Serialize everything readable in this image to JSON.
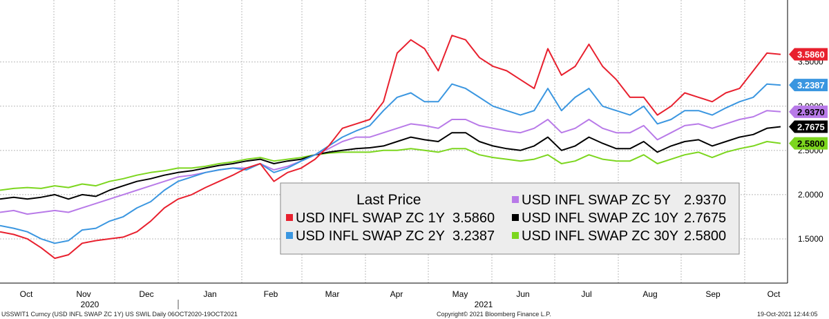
{
  "chart_data": {
    "type": "line",
    "ylim": [
      1.0,
      4.2
    ],
    "yticks": [
      "1.5000",
      "2.0000",
      "2.5000",
      "3.0000",
      "3.5000"
    ],
    "grid": true,
    "legend_placement": "bottom-center",
    "months": [
      "Oct",
      "Nov",
      "Dec",
      "Jan",
      "Feb",
      "Mar",
      "Apr",
      "May",
      "Jun",
      "Jul",
      "Aug",
      "Sep",
      "Oct"
    ],
    "years": [
      "2020",
      "2021"
    ],
    "legend_title": "Last Price",
    "series": [
      {
        "name": "USD INFL SWAP ZC 1Y",
        "last": "3.5860",
        "color": "#e8202e",
        "values": [
          1.58,
          1.55,
          1.5,
          1.4,
          1.28,
          1.32,
          1.45,
          1.48,
          1.5,
          1.52,
          1.58,
          1.7,
          1.85,
          1.95,
          2.0,
          2.08,
          2.15,
          2.22,
          2.3,
          2.35,
          2.15,
          2.25,
          2.3,
          2.4,
          2.55,
          2.75,
          2.8,
          2.85,
          3.05,
          3.6,
          3.75,
          3.65,
          3.4,
          3.8,
          3.75,
          3.55,
          3.45,
          3.4,
          3.3,
          3.2,
          3.65,
          3.35,
          3.45,
          3.7,
          3.45,
          3.3,
          3.1,
          3.1,
          2.9,
          3.0,
          3.15,
          3.1,
          3.05,
          3.15,
          3.2,
          3.4,
          3.6,
          3.586
        ]
      },
      {
        "name": "USD INFL SWAP ZC 2Y",
        "last": "3.2387",
        "color": "#3a96e0",
        "values": [
          1.65,
          1.62,
          1.58,
          1.5,
          1.45,
          1.48,
          1.6,
          1.62,
          1.7,
          1.75,
          1.85,
          1.92,
          2.05,
          2.15,
          2.2,
          2.25,
          2.28,
          2.3,
          2.28,
          2.35,
          2.25,
          2.3,
          2.38,
          2.45,
          2.55,
          2.65,
          2.72,
          2.78,
          2.95,
          3.1,
          3.15,
          3.05,
          3.05,
          3.25,
          3.2,
          3.1,
          3.0,
          2.95,
          2.9,
          2.95,
          3.2,
          2.95,
          3.1,
          3.2,
          3.0,
          2.95,
          2.9,
          3.0,
          2.8,
          2.85,
          2.95,
          2.95,
          2.9,
          2.98,
          3.05,
          3.1,
          3.25,
          3.2387
        ]
      },
      {
        "name": "USD INFL SWAP ZC 5Y",
        "last": "2.9370",
        "color": "#b87ae8",
        "values": [
          1.8,
          1.82,
          1.78,
          1.8,
          1.82,
          1.8,
          1.85,
          1.9,
          1.95,
          2.0,
          2.05,
          2.1,
          2.15,
          2.2,
          2.22,
          2.25,
          2.28,
          2.3,
          2.3,
          2.35,
          2.28,
          2.32,
          2.38,
          2.45,
          2.52,
          2.6,
          2.65,
          2.65,
          2.7,
          2.75,
          2.8,
          2.78,
          2.75,
          2.85,
          2.85,
          2.78,
          2.75,
          2.72,
          2.7,
          2.75,
          2.85,
          2.7,
          2.75,
          2.85,
          2.75,
          2.7,
          2.7,
          2.78,
          2.62,
          2.7,
          2.78,
          2.8,
          2.75,
          2.8,
          2.85,
          2.88,
          2.95,
          2.937
        ]
      },
      {
        "name": "USD INFL SWAP ZC 10Y",
        "last": "2.7675",
        "color": "#000000",
        "values": [
          1.95,
          1.97,
          1.95,
          1.97,
          2.0,
          1.95,
          2.0,
          1.98,
          2.05,
          2.1,
          2.15,
          2.18,
          2.22,
          2.25,
          2.27,
          2.3,
          2.33,
          2.35,
          2.38,
          2.4,
          2.35,
          2.38,
          2.4,
          2.45,
          2.48,
          2.5,
          2.52,
          2.53,
          2.55,
          2.6,
          2.65,
          2.62,
          2.6,
          2.7,
          2.7,
          2.6,
          2.55,
          2.52,
          2.5,
          2.55,
          2.65,
          2.5,
          2.55,
          2.65,
          2.58,
          2.52,
          2.52,
          2.6,
          2.48,
          2.55,
          2.6,
          2.62,
          2.55,
          2.6,
          2.65,
          2.68,
          2.75,
          2.7675
        ]
      },
      {
        "name": "USD INFL SWAP ZC 30Y",
        "last": "2.5800",
        "color": "#7cd61e",
        "values": [
          2.05,
          2.07,
          2.08,
          2.07,
          2.1,
          2.08,
          2.12,
          2.1,
          2.15,
          2.18,
          2.22,
          2.25,
          2.27,
          2.3,
          2.3,
          2.32,
          2.35,
          2.37,
          2.4,
          2.42,
          2.38,
          2.4,
          2.42,
          2.45,
          2.47,
          2.48,
          2.48,
          2.48,
          2.5,
          2.5,
          2.52,
          2.5,
          2.48,
          2.52,
          2.52,
          2.45,
          2.42,
          2.4,
          2.38,
          2.4,
          2.45,
          2.35,
          2.38,
          2.45,
          2.4,
          2.38,
          2.38,
          2.45,
          2.35,
          2.4,
          2.45,
          2.48,
          2.42,
          2.48,
          2.52,
          2.55,
          2.6,
          2.58
        ]
      }
    ]
  },
  "footer": {
    "left": "USSWIT1 Curncy (USD INFL SWAP ZC 1Y) US SWIL  Daily 06OCT2020-19OCT2021",
    "center": "Copyright© 2021 Bloomberg Finance L.P.",
    "right": "19-Oct-2021 12:44:05"
  }
}
